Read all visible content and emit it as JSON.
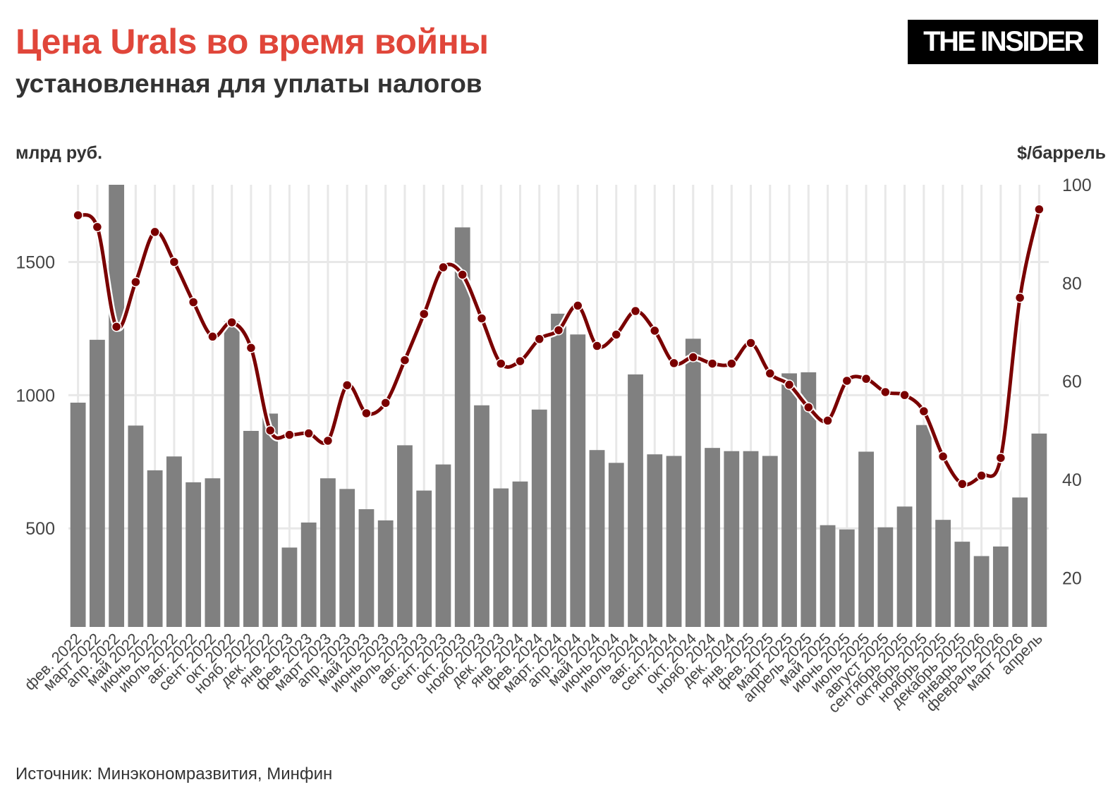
{
  "header": {
    "title": "Цена Urals во время войны",
    "subtitle": "установленная для уплаты налогов",
    "logo": "THE INSIDER",
    "source": "Источник: Минэкономразвития, Минфин"
  },
  "chart_data": {
    "type": "bar+line",
    "categories": [
      "фев. 2022",
      "март 2022",
      "апр. 2022",
      "май 2022",
      "июнь 2022",
      "июль 2022",
      "авг. 2022",
      "сент. 2022",
      "окт. 2022",
      "нояб. 2022",
      "дек. 2022",
      "янв. 2023",
      "фев. 2023",
      "март 2023",
      "апр. 2023",
      "май 2023",
      "июнь 2023",
      "июль 2023",
      "авг. 2023",
      "сент. 2023",
      "окт. 2023",
      "нояб. 2023",
      "дек. 2023",
      "янв. 2024",
      "фев. 2024",
      "март. 2024",
      "апр. 2024",
      "май 2024",
      "июнь 2024",
      "июль 2024",
      "авг. 2024",
      "сент. 2024",
      "окт. 2024",
      "нояб. 2024",
      "дек. 2024",
      "янв. 2025",
      "фев. 2025",
      "март 2025",
      "апрель 2025",
      "май 2025",
      "июнь 2025",
      "июль 2025",
      "август 2025",
      "сентябрь 2025",
      "октябрь 2025",
      "ноябрь 2025",
      "декабрь 2025",
      "январь 2026",
      "февраль 2026",
      "март 2026",
      "апрель"
    ],
    "y_left_label": "млрд руб.",
    "y_right_label": "$/баррель",
    "y_left_ticks": [
      500,
      1000,
      1500
    ],
    "y_right_ticks": [
      20,
      40,
      60,
      80,
      100
    ],
    "y_left_range": [
      130,
      1790
    ],
    "y_right_range": [
      10,
      100
    ],
    "series": [
      {
        "type": "bar",
        "axis": "left",
        "color": "#808080",
        "values": [
          972,
          1208,
          1790,
          886,
          718,
          770,
          673,
          688,
          1278,
          866,
          931,
          428,
          522,
          688,
          648,
          572,
          530,
          812,
          642,
          740,
          1630,
          962,
          650,
          676,
          946,
          1306,
          1228,
          794,
          746,
          1078,
          778,
          772,
          1212,
          802,
          790,
          790,
          772,
          1082,
          1086,
          512,
          496,
          788,
          504,
          582,
          888,
          532,
          450,
          396,
          432,
          616,
          856
        ]
      },
      {
        "type": "line",
        "axis": "right",
        "color": "#7a0000",
        "values": [
          93.8,
          91.4,
          71.1,
          80.2,
          90.4,
          84.3,
          76.1,
          69.1,
          72.0,
          66.8,
          50.0,
          49.1,
          49.4,
          47.9,
          59.2,
          53.5,
          55.6,
          64.3,
          73.7,
          83.2,
          81.7,
          72.8,
          63.6,
          64.1,
          68.6,
          70.4,
          75.4,
          67.2,
          69.5,
          74.3,
          70.3,
          63.7,
          64.9,
          63.6,
          63.6,
          67.8,
          61.6,
          59.3,
          54.7,
          52.0,
          60.1,
          60.5,
          57.8,
          57.2,
          53.9,
          44.7,
          39.1,
          40.8,
          44.4,
          77.0,
          95.0
        ]
      }
    ]
  }
}
